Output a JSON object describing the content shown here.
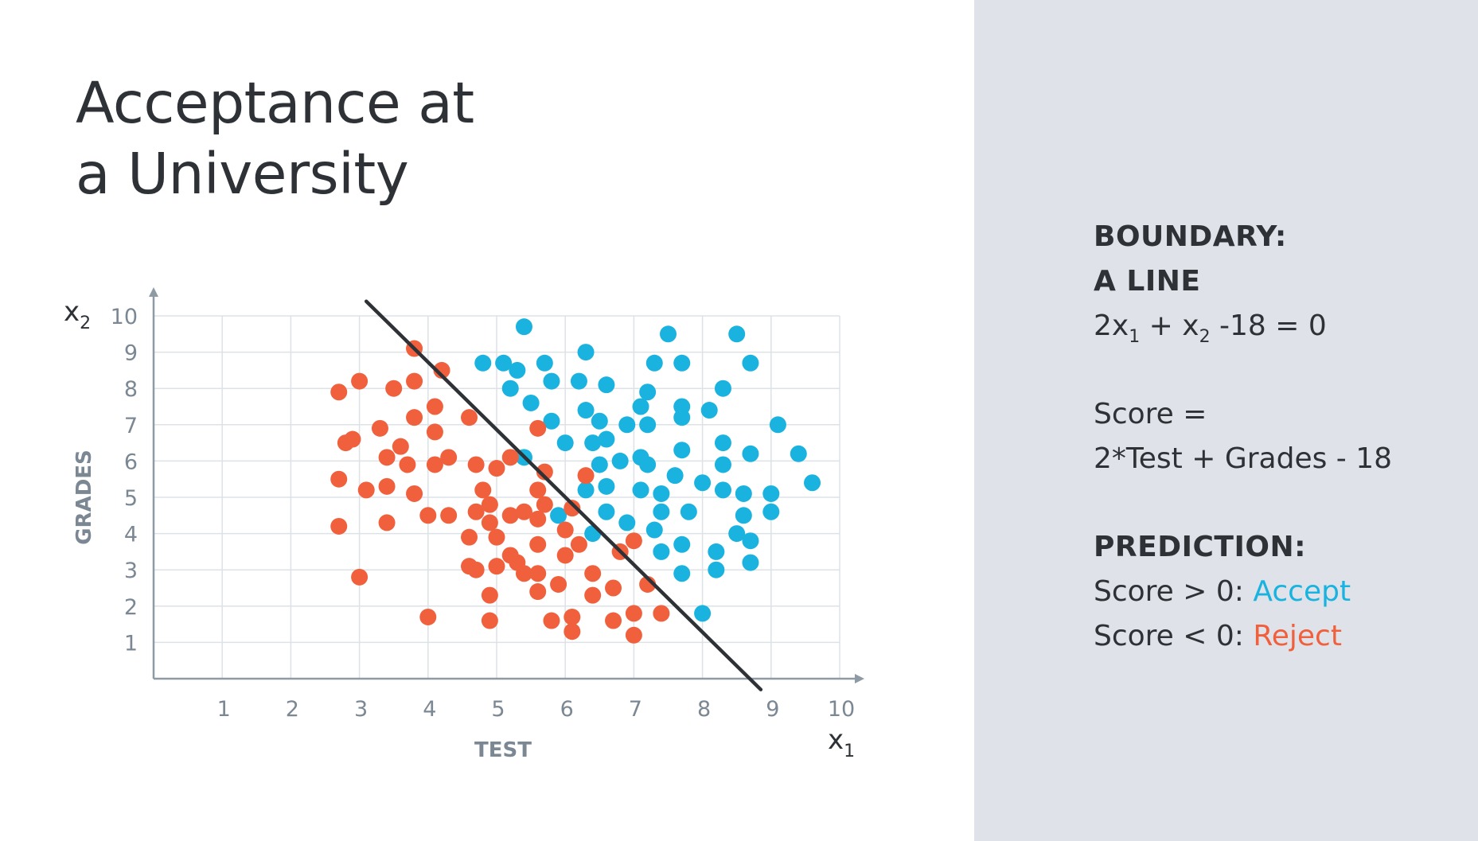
{
  "slide": {
    "title_line1": "Acceptance at",
    "title_line2": "a University"
  },
  "info": {
    "boundary_heading": "BOUNDARY:",
    "boundary_sub": "A LINE",
    "equation": {
      "a": "2x",
      "a_sub": "1",
      "b": " + x",
      "b_sub": "2",
      "c": " -18 = 0"
    },
    "score_label": "Score =",
    "score_formula": "2*Test + Grades - 18",
    "prediction_heading": "PREDICTION:",
    "accept_prefix": "Score > 0: ",
    "accept_word": "Accept",
    "reject_prefix": "Score < 0: ",
    "reject_word": "Reject"
  },
  "colors": {
    "accept": "#1ab3df",
    "reject": "#f0603d",
    "boundary_line": "#2e3236",
    "grid": "#dde2e7",
    "axis": "#8e9aa4",
    "panel": "#dfe3e9"
  },
  "chart_data": {
    "type": "scatter",
    "xlabel": "TEST",
    "ylabel": "GRADES",
    "x_var": "x",
    "x_var_sub": "1",
    "y_var": "x",
    "y_var_sub": "2",
    "xlim": [
      0,
      10
    ],
    "ylim": [
      0,
      10
    ],
    "xticks": [
      1,
      2,
      3,
      4,
      5,
      6,
      7,
      8,
      9,
      10
    ],
    "yticks": [
      1,
      2,
      3,
      4,
      5,
      6,
      7,
      8,
      9,
      10
    ],
    "grid": true,
    "boundary": {
      "equation": "2x1 + x2 - 18 = 0",
      "from": [
        3.1,
        10.4
      ],
      "to": [
        8.85,
        -0.3
      ]
    },
    "series": [
      {
        "name": "Accept",
        "points": [
          [
            5.4,
            9.7
          ],
          [
            7.5,
            9.5
          ],
          [
            8.5,
            9.5
          ],
          [
            4.8,
            8.7
          ],
          [
            5.1,
            8.7
          ],
          [
            5.7,
            8.7
          ],
          [
            6.3,
            9.0
          ],
          [
            7.3,
            8.7
          ],
          [
            7.7,
            8.7
          ],
          [
            8.7,
            8.7
          ],
          [
            5.3,
            8.5
          ],
          [
            5.2,
            8.0
          ],
          [
            5.8,
            8.2
          ],
          [
            6.2,
            8.2
          ],
          [
            6.6,
            8.1
          ],
          [
            7.2,
            7.9
          ],
          [
            8.3,
            8.0
          ],
          [
            5.5,
            7.6
          ],
          [
            5.8,
            7.1
          ],
          [
            6.3,
            7.4
          ],
          [
            6.5,
            7.1
          ],
          [
            6.9,
            7.0
          ],
          [
            7.1,
            7.5
          ],
          [
            7.2,
            7.0
          ],
          [
            7.7,
            7.5
          ],
          [
            7.7,
            7.2
          ],
          [
            8.1,
            7.4
          ],
          [
            9.1,
            7.0
          ],
          [
            6.0,
            6.5
          ],
          [
            6.4,
            6.5
          ],
          [
            6.6,
            6.6
          ],
          [
            7.7,
            6.3
          ],
          [
            8.3,
            6.5
          ],
          [
            8.7,
            6.2
          ],
          [
            9.4,
            6.2
          ],
          [
            5.4,
            6.1
          ],
          [
            6.5,
            5.9
          ],
          [
            6.8,
            6.0
          ],
          [
            7.1,
            6.1
          ],
          [
            7.2,
            5.9
          ],
          [
            7.6,
            5.6
          ],
          [
            8.3,
            5.9
          ],
          [
            6.3,
            5.2
          ],
          [
            6.6,
            5.3
          ],
          [
            7.1,
            5.2
          ],
          [
            7.4,
            5.1
          ],
          [
            8.0,
            5.4
          ],
          [
            8.3,
            5.2
          ],
          [
            8.6,
            5.1
          ],
          [
            9.0,
            5.1
          ],
          [
            9.6,
            5.4
          ],
          [
            5.9,
            4.5
          ],
          [
            6.6,
            4.6
          ],
          [
            6.9,
            4.3
          ],
          [
            7.4,
            4.6
          ],
          [
            7.8,
            4.6
          ],
          [
            8.6,
            4.5
          ],
          [
            9.0,
            4.6
          ],
          [
            6.4,
            4.0
          ],
          [
            7.3,
            4.1
          ],
          [
            7.7,
            3.7
          ],
          [
            8.5,
            4.0
          ],
          [
            8.7,
            3.8
          ],
          [
            7.4,
            3.5
          ],
          [
            8.2,
            3.5
          ],
          [
            7.7,
            2.9
          ],
          [
            8.2,
            3.0
          ],
          [
            8.7,
            3.2
          ],
          [
            8.0,
            1.8
          ]
        ]
      },
      {
        "name": "Reject",
        "points": [
          [
            3.8,
            9.1
          ],
          [
            4.2,
            8.5
          ],
          [
            2.7,
            7.9
          ],
          [
            3.0,
            8.2
          ],
          [
            3.5,
            8.0
          ],
          [
            3.8,
            8.2
          ],
          [
            3.8,
            7.2
          ],
          [
            4.1,
            7.5
          ],
          [
            4.6,
            7.2
          ],
          [
            5.6,
            6.9
          ],
          [
            2.8,
            6.5
          ],
          [
            2.9,
            6.6
          ],
          [
            3.3,
            6.9
          ],
          [
            3.6,
            6.4
          ],
          [
            4.1,
            6.8
          ],
          [
            3.4,
            6.1
          ],
          [
            3.7,
            5.9
          ],
          [
            4.1,
            5.9
          ],
          [
            4.3,
            6.1
          ],
          [
            4.7,
            5.9
          ],
          [
            5.0,
            5.8
          ],
          [
            5.2,
            6.1
          ],
          [
            5.7,
            5.7
          ],
          [
            2.7,
            5.5
          ],
          [
            3.1,
            5.2
          ],
          [
            3.4,
            5.3
          ],
          [
            3.8,
            5.1
          ],
          [
            4.8,
            5.2
          ],
          [
            5.6,
            5.2
          ],
          [
            2.7,
            4.2
          ],
          [
            3.4,
            4.3
          ],
          [
            4.0,
            4.5
          ],
          [
            4.3,
            4.5
          ],
          [
            4.7,
            4.6
          ],
          [
            4.9,
            4.8
          ],
          [
            5.2,
            4.5
          ],
          [
            5.4,
            4.6
          ],
          [
            5.6,
            4.4
          ],
          [
            5.7,
            4.8
          ],
          [
            6.1,
            4.7
          ],
          [
            6.3,
            5.6
          ],
          [
            4.6,
            3.9
          ],
          [
            4.9,
            4.3
          ],
          [
            5.0,
            3.9
          ],
          [
            5.6,
            3.7
          ],
          [
            6.0,
            4.1
          ],
          [
            6.2,
            3.7
          ],
          [
            5.2,
            3.4
          ],
          [
            5.0,
            3.1
          ],
          [
            5.3,
            3.2
          ],
          [
            4.6,
            3.1
          ],
          [
            4.7,
            3.0
          ],
          [
            5.4,
            2.9
          ],
          [
            5.6,
            2.9
          ],
          [
            6.0,
            3.4
          ],
          [
            6.4,
            2.9
          ],
          [
            6.8,
            3.5
          ],
          [
            7.0,
            3.8
          ],
          [
            4.9,
            2.3
          ],
          [
            5.6,
            2.4
          ],
          [
            5.9,
            2.6
          ],
          [
            6.4,
            2.3
          ],
          [
            6.7,
            2.5
          ],
          [
            7.2,
            2.6
          ],
          [
            3.0,
            2.8
          ],
          [
            4.0,
            1.7
          ],
          [
            4.9,
            1.6
          ],
          [
            5.8,
            1.6
          ],
          [
            6.1,
            1.7
          ],
          [
            6.7,
            1.6
          ],
          [
            7.0,
            1.8
          ],
          [
            7.4,
            1.8
          ],
          [
            6.1,
            1.3
          ],
          [
            7.0,
            1.2
          ]
        ]
      }
    ]
  }
}
